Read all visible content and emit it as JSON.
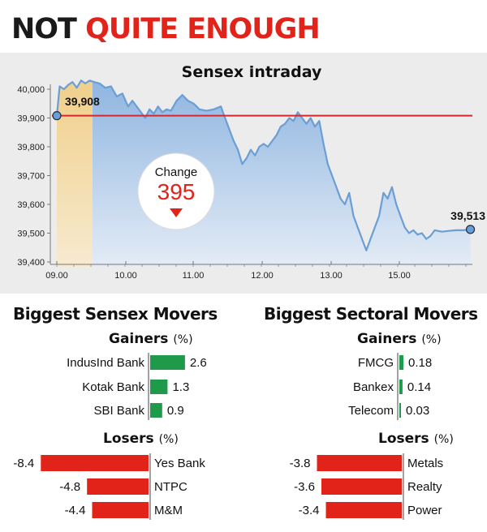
{
  "headline": {
    "part1": "NOT",
    "part2": "QUITE ENOUGH"
  },
  "colors": {
    "gain": "#1f9a4a",
    "loss": "#e2231a",
    "line": "#6a9ed4",
    "ref": "#d9262e",
    "bg": "#ececec"
  },
  "chart_data": [
    {
      "type": "area",
      "title": "Sensex intraday",
      "ylim": [
        39400,
        40030
      ],
      "yticks": [
        "40,000",
        "39,900",
        "39,800",
        "39,700",
        "39,600",
        "39,500",
        "39,400"
      ],
      "xticks": [
        "09.00",
        "10.00",
        "11.00",
        "12.00",
        "13.00",
        "15.00"
      ],
      "open_label": "39,908",
      "close_label": "39,513",
      "reference_level": 39908,
      "change_label": "Change",
      "change_value": "395",
      "grid": false,
      "series": [
        {
          "points": [
            [
              0,
              39908
            ],
            [
              2,
              40010
            ],
            [
              5,
              40000
            ],
            [
              8,
              40015
            ],
            [
              11,
              40025
            ],
            [
              14,
              40005
            ],
            [
              17,
              40030
            ],
            [
              20,
              40020
            ],
            [
              23,
              40030
            ],
            [
              26,
              40025
            ],
            [
              30,
              40020
            ],
            [
              34,
              40005
            ],
            [
              38,
              40010
            ],
            [
              42,
              39975
            ],
            [
              46,
              39985
            ],
            [
              50,
              39940
            ],
            [
              53,
              39960
            ],
            [
              56,
              39940
            ],
            [
              59,
              39920
            ],
            [
              62,
              39900
            ],
            [
              65,
              39930
            ],
            [
              68,
              39915
            ],
            [
              71,
              39940
            ],
            [
              74,
              39920
            ],
            [
              77,
              39930
            ],
            [
              80,
              39925
            ],
            [
              84,
              39960
            ],
            [
              88,
              39980
            ],
            [
              92,
              39960
            ],
            [
              96,
              39950
            ],
            [
              100,
              39930
            ],
            [
              105,
              39925
            ],
            [
              110,
              39930
            ],
            [
              115,
              39940
            ],
            [
              118,
              39900
            ],
            [
              121,
              39860
            ],
            [
              124,
              39820
            ],
            [
              127,
              39790
            ],
            [
              130,
              39740
            ],
            [
              133,
              39760
            ],
            [
              136,
              39790
            ],
            [
              139,
              39770
            ],
            [
              142,
              39800
            ],
            [
              145,
              39810
            ],
            [
              148,
              39800
            ],
            [
              151,
              39820
            ],
            [
              154,
              39840
            ],
            [
              157,
              39870
            ],
            [
              160,
              39880
            ],
            [
              163,
              39900
            ],
            [
              166,
              39890
            ],
            [
              169,
              39920
            ],
            [
              172,
              39900
            ],
            [
              175,
              39880
            ],
            [
              178,
              39900
            ],
            [
              181,
              39870
            ],
            [
              184,
              39890
            ],
            [
              187,
              39810
            ],
            [
              190,
              39740
            ],
            [
              193,
              39700
            ],
            [
              196,
              39660
            ],
            [
              199,
              39620
            ],
            [
              202,
              39600
            ],
            [
              205,
              39640
            ],
            [
              208,
              39560
            ],
            [
              211,
              39520
            ],
            [
              214,
              39480
            ],
            [
              217,
              39440
            ],
            [
              220,
              39480
            ],
            [
              223,
              39520
            ],
            [
              226,
              39560
            ],
            [
              229,
              39640
            ],
            [
              232,
              39620
            ],
            [
              235,
              39660
            ],
            [
              238,
              39600
            ],
            [
              241,
              39560
            ],
            [
              244,
              39520
            ],
            [
              247,
              39500
            ],
            [
              250,
              39510
            ],
            [
              253,
              39495
            ],
            [
              256,
              39500
            ],
            [
              259,
              39480
            ],
            [
              262,
              39490
            ],
            [
              265,
              39510
            ],
            [
              270,
              39505
            ],
            [
              275,
              39508
            ],
            [
              280,
              39510
            ],
            [
              285,
              39510
            ],
            [
              290,
              39513
            ]
          ]
        }
      ]
    },
    {
      "type": "bar",
      "title": "Biggest Sensex Movers",
      "gainers_label": "Gainers",
      "losers_label": "Losers",
      "unit": "(%)",
      "gainers": [
        {
          "label": "IndusInd Bank",
          "value": 2.6,
          "text": "2.6"
        },
        {
          "label": "Kotak Bank",
          "value": 1.3,
          "text": "1.3"
        },
        {
          "label": "SBI Bank",
          "value": 0.9,
          "text": "0.9"
        }
      ],
      "losers": [
        {
          "label": "Yes Bank",
          "value": -8.4,
          "text": "-8.4"
        },
        {
          "label": "NTPC",
          "value": -4.8,
          "text": "-4.8"
        },
        {
          "label": "M&M",
          "value": -4.4,
          "text": "-4.4"
        }
      ]
    },
    {
      "type": "bar",
      "title": "Biggest Sectoral Movers",
      "gainers_label": "Gainers",
      "losers_label": "Losers",
      "unit": "(%)",
      "gainers": [
        {
          "label": "FMCG",
          "value": 0.18,
          "text": "0.18"
        },
        {
          "label": "Bankex",
          "value": 0.14,
          "text": "0.14"
        },
        {
          "label": "Telecom",
          "value": 0.03,
          "text": "0.03"
        }
      ],
      "losers": [
        {
          "label": "Metals",
          "value": -3.8,
          "text": "-3.8"
        },
        {
          "label": "Realty",
          "value": -3.6,
          "text": "-3.6"
        },
        {
          "label": "Power",
          "value": -3.4,
          "text": "-3.4"
        }
      ]
    }
  ]
}
